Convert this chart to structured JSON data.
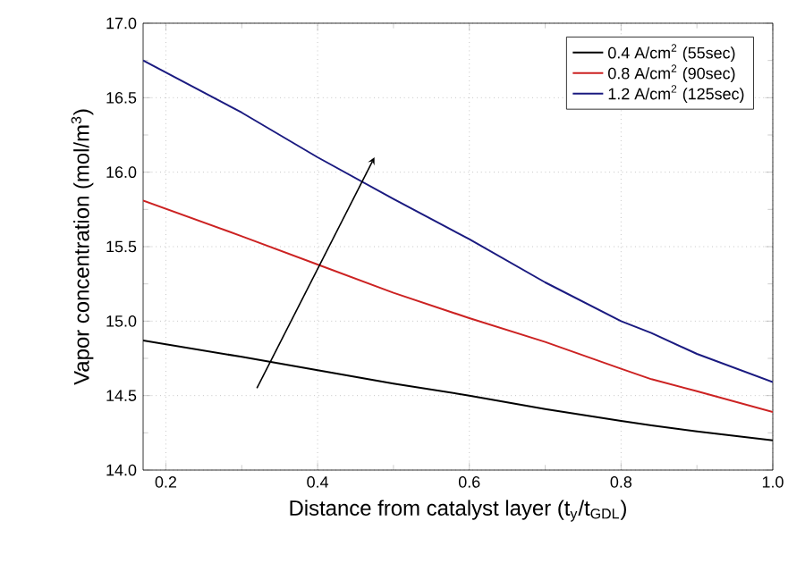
{
  "chart_data": {
    "type": "line",
    "xlabel": "Distance from catalyst layer (t$_{y}$/t$_{GDL}$)",
    "ylabel": "Vapor concentration (mol/m$^{3}$)",
    "x": [
      0.17,
      0.3,
      0.4,
      0.5,
      0.6,
      0.7,
      0.8,
      0.84,
      0.9,
      1.0
    ],
    "series": [
      {
        "name": "0.4 A/cm$^{2}$ (55sec)",
        "color": "#000000",
        "values": [
          14.87,
          14.76,
          14.67,
          14.58,
          14.5,
          14.41,
          14.33,
          14.3,
          14.26,
          14.2
        ]
      },
      {
        "name": "0.8 A/cm$^{2}$ (90sec)",
        "color": "#cc2222",
        "values": [
          15.81,
          15.57,
          15.38,
          15.19,
          15.02,
          14.86,
          14.68,
          14.61,
          14.53,
          14.39
        ]
      },
      {
        "name": "1.2 A/cm$^{2}$ (125sec)",
        "color": "#1a1a80",
        "values": [
          16.75,
          16.4,
          16.1,
          15.82,
          15.55,
          15.26,
          15.0,
          14.92,
          14.78,
          14.59
        ]
      }
    ],
    "xlim": [
      0.17,
      1.0
    ],
    "ylim": [
      14.0,
      17.0
    ],
    "xticks": [
      0.2,
      0.4,
      0.6,
      0.8,
      {
        "value": 1.0,
        "label": "1.0"
      }
    ],
    "yticks": [
      {
        "value": 14.0,
        "label": "14.0"
      },
      14.5,
      {
        "value": 15.0,
        "label": "15.0"
      },
      15.5,
      {
        "value": 16.0,
        "label": "16.0"
      },
      16.5,
      {
        "value": 17.0,
        "label": "17.0"
      }
    ],
    "grid": true,
    "legend": "top right",
    "marker": "none",
    "line_style": "solid"
  }
}
